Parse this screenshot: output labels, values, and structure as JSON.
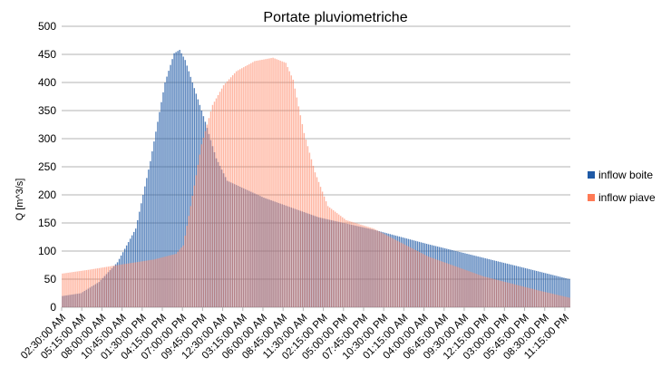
{
  "chart_data": {
    "type": "bar",
    "title": "Portate pluviometriche",
    "xlabel": "",
    "ylabel": "Q [m^3/s]",
    "ylim": [
      0,
      500
    ],
    "yticks": [
      0,
      50,
      100,
      150,
      200,
      250,
      300,
      350,
      400,
      450,
      500
    ],
    "grid": true,
    "legend": "right",
    "colors": {
      "inflow boite": "#1f5aa6",
      "inflow piave": "#ff7a55"
    },
    "x_tick_labels": [
      "02:30:00 AM",
      "05:15:00 AM",
      "08:00:00 AM",
      "10:45:00 AM",
      "01:30:00 PM",
      "04:15:00 PM",
      "07:00:00 PM",
      "09:45:00 PM",
      "12:30:00 AM",
      "03:15:00 AM",
      "06:00:00 AM",
      "08:45:00 AM",
      "11:30:00 AM",
      "02:15:00 PM",
      "05:00:00 PM",
      "07:45:00 PM",
      "10:30:00 PM",
      "01:15:00 AM",
      "04:00:00 AM",
      "06:45:00 AM",
      "09:30:00 AM",
      "12:15:00 PM",
      "03:00:00 PM",
      "05:45:00 PM",
      "08:30:00 PM",
      "11:15:00 PM"
    ],
    "x_tick_interval_steps": 11,
    "num_steps": 278,
    "series": [
      {
        "name": "inflow boite",
        "key_points": [
          [
            0,
            20
          ],
          [
            10,
            25
          ],
          [
            20,
            45
          ],
          [
            30,
            80
          ],
          [
            40,
            140
          ],
          [
            48,
            260
          ],
          [
            56,
            400
          ],
          [
            61,
            452
          ],
          [
            64,
            458
          ],
          [
            67,
            440
          ],
          [
            72,
            390
          ],
          [
            78,
            330
          ],
          [
            84,
            265
          ],
          [
            90,
            225
          ],
          [
            110,
            195
          ],
          [
            140,
            160
          ],
          [
            170,
            138
          ],
          [
            200,
            112
          ],
          [
            230,
            88
          ],
          [
            250,
            72
          ],
          [
            277,
            50
          ]
        ]
      },
      {
        "name": "inflow piave",
        "key_points": [
          [
            0,
            60
          ],
          [
            15,
            67
          ],
          [
            30,
            75
          ],
          [
            50,
            85
          ],
          [
            62,
            95
          ],
          [
            66,
            110
          ],
          [
            70,
            180
          ],
          [
            76,
            290
          ],
          [
            82,
            360
          ],
          [
            88,
            395
          ],
          [
            95,
            420
          ],
          [
            105,
            438
          ],
          [
            115,
            444
          ],
          [
            122,
            435
          ],
          [
            126,
            405
          ],
          [
            132,
            310
          ],
          [
            138,
            240
          ],
          [
            145,
            180
          ],
          [
            155,
            155
          ],
          [
            170,
            140
          ],
          [
            200,
            90
          ],
          [
            230,
            55
          ],
          [
            260,
            30
          ],
          [
            277,
            17
          ]
        ]
      }
    ]
  }
}
